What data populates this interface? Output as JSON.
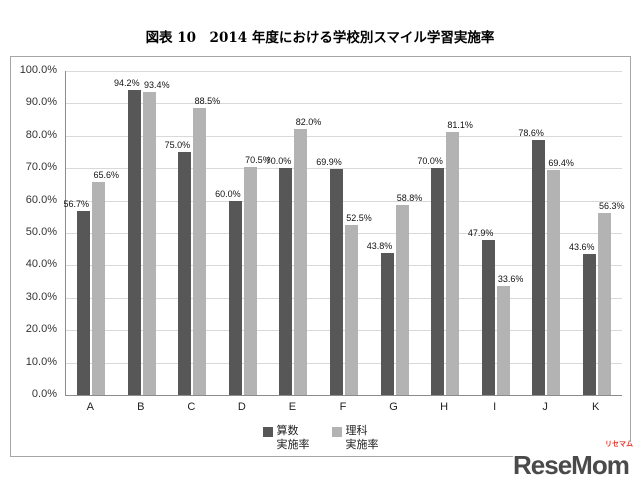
{
  "title": "図表 10　2014 年度における学校別スマイル学習実施率",
  "chart_data": {
    "type": "bar",
    "title": "図表 10　2014 年度における学校別スマイル学習実施率",
    "categories": [
      "A",
      "B",
      "C",
      "D",
      "E",
      "F",
      "G",
      "H",
      "I",
      "J",
      "K"
    ],
    "series": [
      {
        "name": "算数 実施率",
        "color": "#575757",
        "values": [
          56.7,
          94.2,
          75.0,
          60.0,
          70.0,
          69.9,
          43.8,
          70.0,
          47.9,
          78.6,
          43.6
        ]
      },
      {
        "name": "理科 実施率",
        "color": "#b3b3b3",
        "values": [
          65.6,
          93.4,
          88.5,
          70.5,
          82.0,
          52.5,
          58.8,
          81.1,
          33.6,
          69.4,
          56.3
        ]
      }
    ],
    "xlabel": "",
    "ylabel": "",
    "ylim": [
      0,
      100
    ],
    "ytick_step": 10,
    "ytick_labels": [
      "0.0%",
      "10.0%",
      "20.0%",
      "30.0%",
      "40.0%",
      "50.0%",
      "60.0%",
      "70.0%",
      "80.0%",
      "90.0%",
      "100.0%"
    ],
    "grid": true,
    "legend_position": "bottom",
    "data_labels": true,
    "data_label_format": "0.0%"
  },
  "legend": {
    "items": [
      {
        "line1": "算数",
        "line2": "実施率"
      },
      {
        "line1": "理科",
        "line2": "実施率"
      }
    ]
  },
  "watermark": {
    "text": "ReseMom",
    "subtext": "リセマム",
    "text_color": "#4a4a4a",
    "subtext_color": "#e8382f"
  }
}
